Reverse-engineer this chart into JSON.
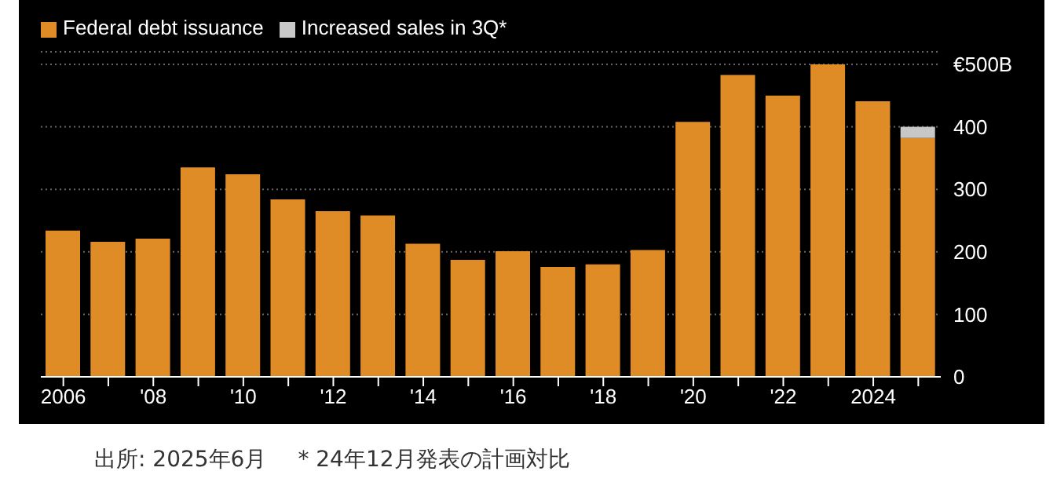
{
  "chart_data": {
    "type": "bar",
    "stacked": true,
    "categories": [
      "2006",
      null,
      "'08",
      null,
      "'10",
      null,
      "'12",
      null,
      "'14",
      null,
      "'16",
      null,
      "'18",
      null,
      "'20",
      null,
      "'22",
      null,
      "2024",
      null
    ],
    "series": [
      {
        "name": "Federal debt issuance",
        "color": "#e08c26",
        "values": [
          234,
          216,
          221,
          335,
          324,
          284,
          265,
          258,
          213,
          187,
          201,
          176,
          180,
          203,
          408,
          483,
          450,
          500,
          441,
          382
        ]
      },
      {
        "name": "Increased sales in 3Q*",
        "color": "#c8c8c8",
        "values": [
          null,
          null,
          null,
          null,
          null,
          null,
          null,
          null,
          null,
          null,
          null,
          null,
          null,
          null,
          null,
          null,
          null,
          null,
          null,
          18
        ]
      }
    ],
    "ylim": [
      0,
      520
    ],
    "yticks": [
      0,
      100,
      200,
      300,
      400,
      {
        "value": 500,
        "label": "€500B"
      }
    ],
    "grid": "y",
    "legend": "top left",
    "annotations": [
      "出所: 2025年6月",
      "* 24年12月発表の計画対比"
    ]
  }
}
